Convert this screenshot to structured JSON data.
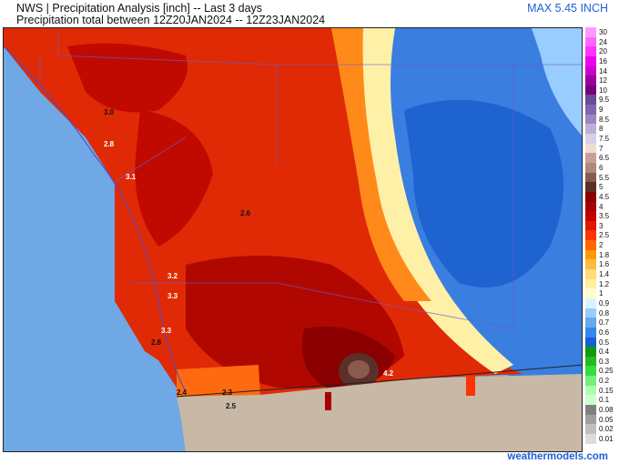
{
  "header": {
    "title": "NWS | Precipitation Analysis [inch] -- Last 3 days",
    "subtitle": "Precipitation total between 12Z20JAN2024 -- 12Z23JAN2024",
    "max_label": "MAX 5.45 INCH"
  },
  "map": {
    "colors": {
      "ocean": "#6fa8e4",
      "land_outside": "#c7b9a6",
      "heavy": "#b50f00",
      "very_heavy": "#8a0000",
      "moderate": "#e8320a",
      "light": "#ff7a1a",
      "lightest": "#fff3c0",
      "trace_blue": "#5a9ae8",
      "low_blue": "#2e6fd8"
    },
    "value_labels": [
      {
        "text": "3.0"
      },
      {
        "text": "2.8"
      },
      {
        "text": "3.1"
      },
      {
        "text": "2.6"
      },
      {
        "text": "3.2"
      },
      {
        "text": "3.3"
      },
      {
        "text": "3.3"
      },
      {
        "text": "2.8"
      },
      {
        "text": "2.4"
      },
      {
        "text": "2.3"
      },
      {
        "text": "2.5"
      },
      {
        "text": "4.2"
      }
    ]
  },
  "legend": [
    {
      "label": "30",
      "color": "#ff99ff"
    },
    {
      "label": "24",
      "color": "#ff66ff"
    },
    {
      "label": "20",
      "color": "#ff33ff"
    },
    {
      "label": "16",
      "color": "#ee00ee"
    },
    {
      "label": "14",
      "color": "#cc00cc"
    },
    {
      "label": "12",
      "color": "#990099"
    },
    {
      "label": "10",
      "color": "#770077"
    },
    {
      "label": "9.5",
      "color": "#6a4a99"
    },
    {
      "label": "9",
      "color": "#8066aa"
    },
    {
      "label": "8.5",
      "color": "#9a88c0"
    },
    {
      "label": "8",
      "color": "#bbb0d8"
    },
    {
      "label": "7.5",
      "color": "#d8d0e8"
    },
    {
      "label": "7",
      "color": "#f0dcd0"
    },
    {
      "label": "6.5",
      "color": "#c8a098"
    },
    {
      "label": "6",
      "color": "#b08880"
    },
    {
      "label": "5.5",
      "color": "#8a5a50"
    },
    {
      "label": "5",
      "color": "#5a3028"
    },
    {
      "label": "4.5",
      "color": "#8a0000"
    },
    {
      "label": "4",
      "color": "#a80000"
    },
    {
      "label": "3.5",
      "color": "#c40000"
    },
    {
      "label": "3",
      "color": "#dd1a00"
    },
    {
      "label": "2.5",
      "color": "#ff3300"
    },
    {
      "label": "2",
      "color": "#ff6600"
    },
    {
      "label": "1.8",
      "color": "#ff9900"
    },
    {
      "label": "1.6",
      "color": "#ffbb44"
    },
    {
      "label": "1.4",
      "color": "#ffdd77"
    },
    {
      "label": "1.2",
      "color": "#fff0a0"
    },
    {
      "label": "1",
      "color": "#fffcd0"
    },
    {
      "label": "0.9",
      "color": "#d8f4ff"
    },
    {
      "label": "0.8",
      "color": "#99ccff"
    },
    {
      "label": "0.7",
      "color": "#66aaee"
    },
    {
      "label": "0.6",
      "color": "#3388ee"
    },
    {
      "label": "0.5",
      "color": "#1a60d0"
    },
    {
      "label": "0.4",
      "color": "#119911"
    },
    {
      "label": "0.3",
      "color": "#22bb22"
    },
    {
      "label": "0.25",
      "color": "#33dd44"
    },
    {
      "label": "0.2",
      "color": "#77ee77"
    },
    {
      "label": "0.15",
      "color": "#aaffaa"
    },
    {
      "label": "0.1",
      "color": "#ccffcc"
    },
    {
      "label": "0.08",
      "color": "#808080"
    },
    {
      "label": "0.05",
      "color": "#a0a0a0"
    },
    {
      "label": "0.02",
      "color": "#c0c0c0"
    },
    {
      "label": "0.01",
      "color": "#dddddd"
    }
  ],
  "footer": {
    "credit": "weathermodels.com"
  }
}
